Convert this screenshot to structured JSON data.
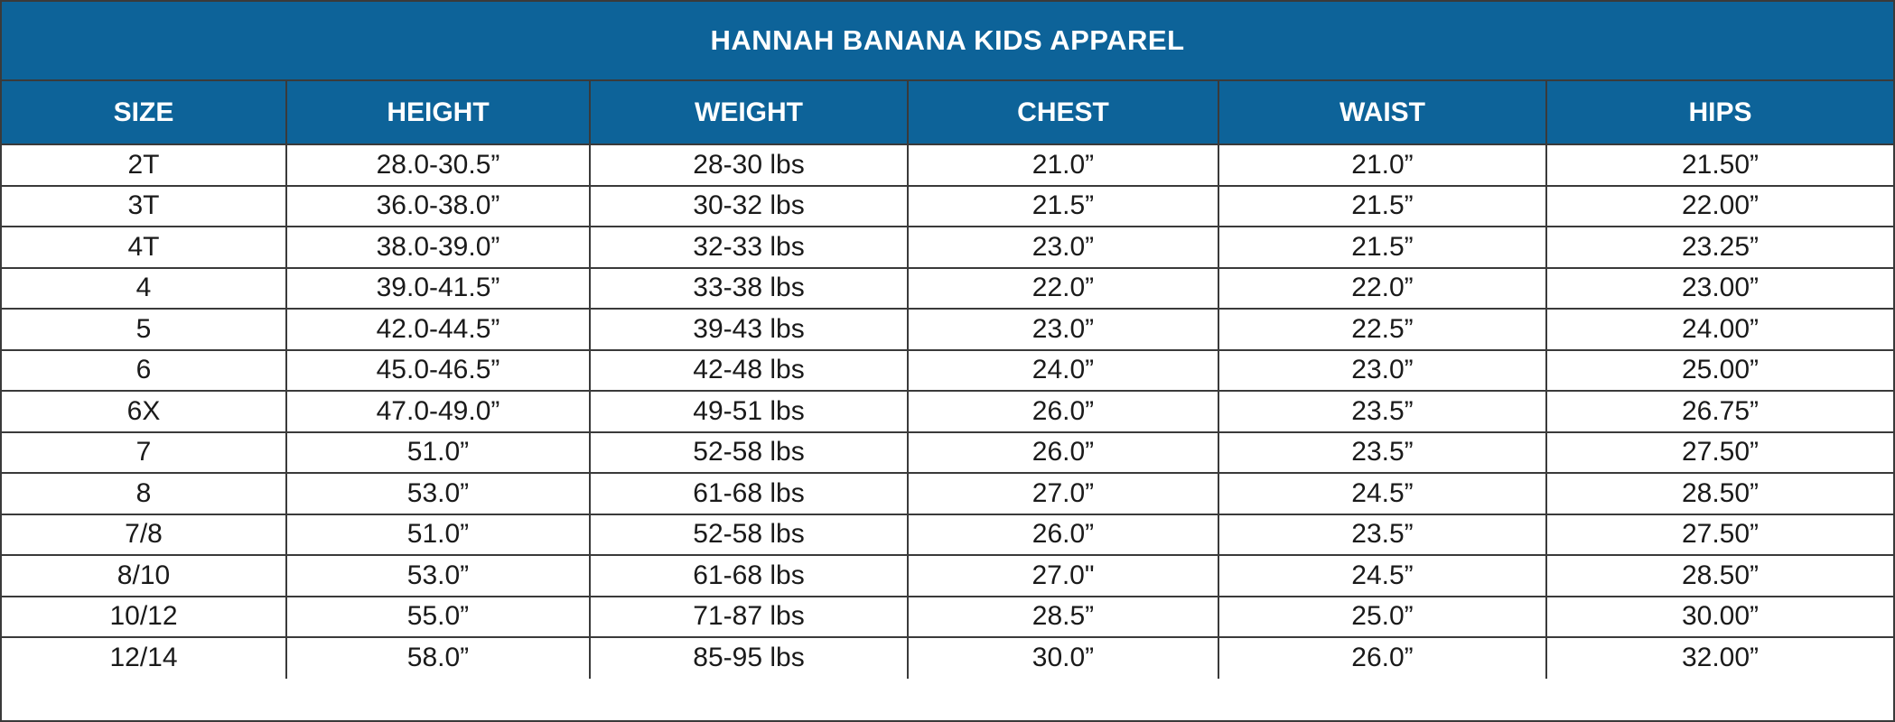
{
  "title": "HANNAH BANANA KIDS APPAREL",
  "columns": [
    "SIZE",
    "HEIGHT",
    "WEIGHT",
    "CHEST",
    "WAIST",
    "HIPS"
  ],
  "rows": [
    [
      "2T",
      "28.0-30.5”",
      "28-30 lbs",
      "21.0”",
      "21.0”",
      "21.50”"
    ],
    [
      "3T",
      "36.0-38.0”",
      "30-32 lbs",
      "21.5”",
      "21.5”",
      "22.00”"
    ],
    [
      "4T",
      "38.0-39.0”",
      "32-33 lbs",
      "23.0”",
      "21.5”",
      "23.25”"
    ],
    [
      "4",
      "39.0-41.5”",
      "33-38 lbs",
      "22.0”",
      "22.0”",
      "23.00”"
    ],
    [
      "5",
      "42.0-44.5”",
      "39-43 lbs",
      "23.0”",
      "22.5”",
      "24.00”"
    ],
    [
      "6",
      "45.0-46.5”",
      "42-48 lbs",
      "24.0”",
      "23.0”",
      "25.00”"
    ],
    [
      "6X",
      "47.0-49.0”",
      "49-51 lbs",
      "26.0”",
      "23.5”",
      "26.75”"
    ],
    [
      "7",
      "51.0”",
      "52-58 lbs",
      "26.0”",
      "23.5”",
      "27.50”"
    ],
    [
      "8",
      "53.0”",
      "61-68 lbs",
      "27.0”",
      "24.5”",
      "28.50”"
    ],
    [
      "7/8",
      "51.0”",
      "52-58 lbs",
      "26.0”",
      "23.5”",
      "27.50”"
    ],
    [
      "8/10",
      "53.0”",
      "61-68 lbs",
      "27.0\"",
      "24.5”",
      "28.50”"
    ],
    [
      "10/12",
      "55.0”",
      "71-87 lbs",
      "28.5”",
      "25.0”",
      "30.00”"
    ],
    [
      "12/14",
      "58.0”",
      "85-95 lbs",
      "30.0”",
      "26.0”",
      "32.00”"
    ]
  ],
  "colors": {
    "header_bg": "#0d6399",
    "header_text": "#ffffff",
    "border": "#3a3a3a"
  }
}
